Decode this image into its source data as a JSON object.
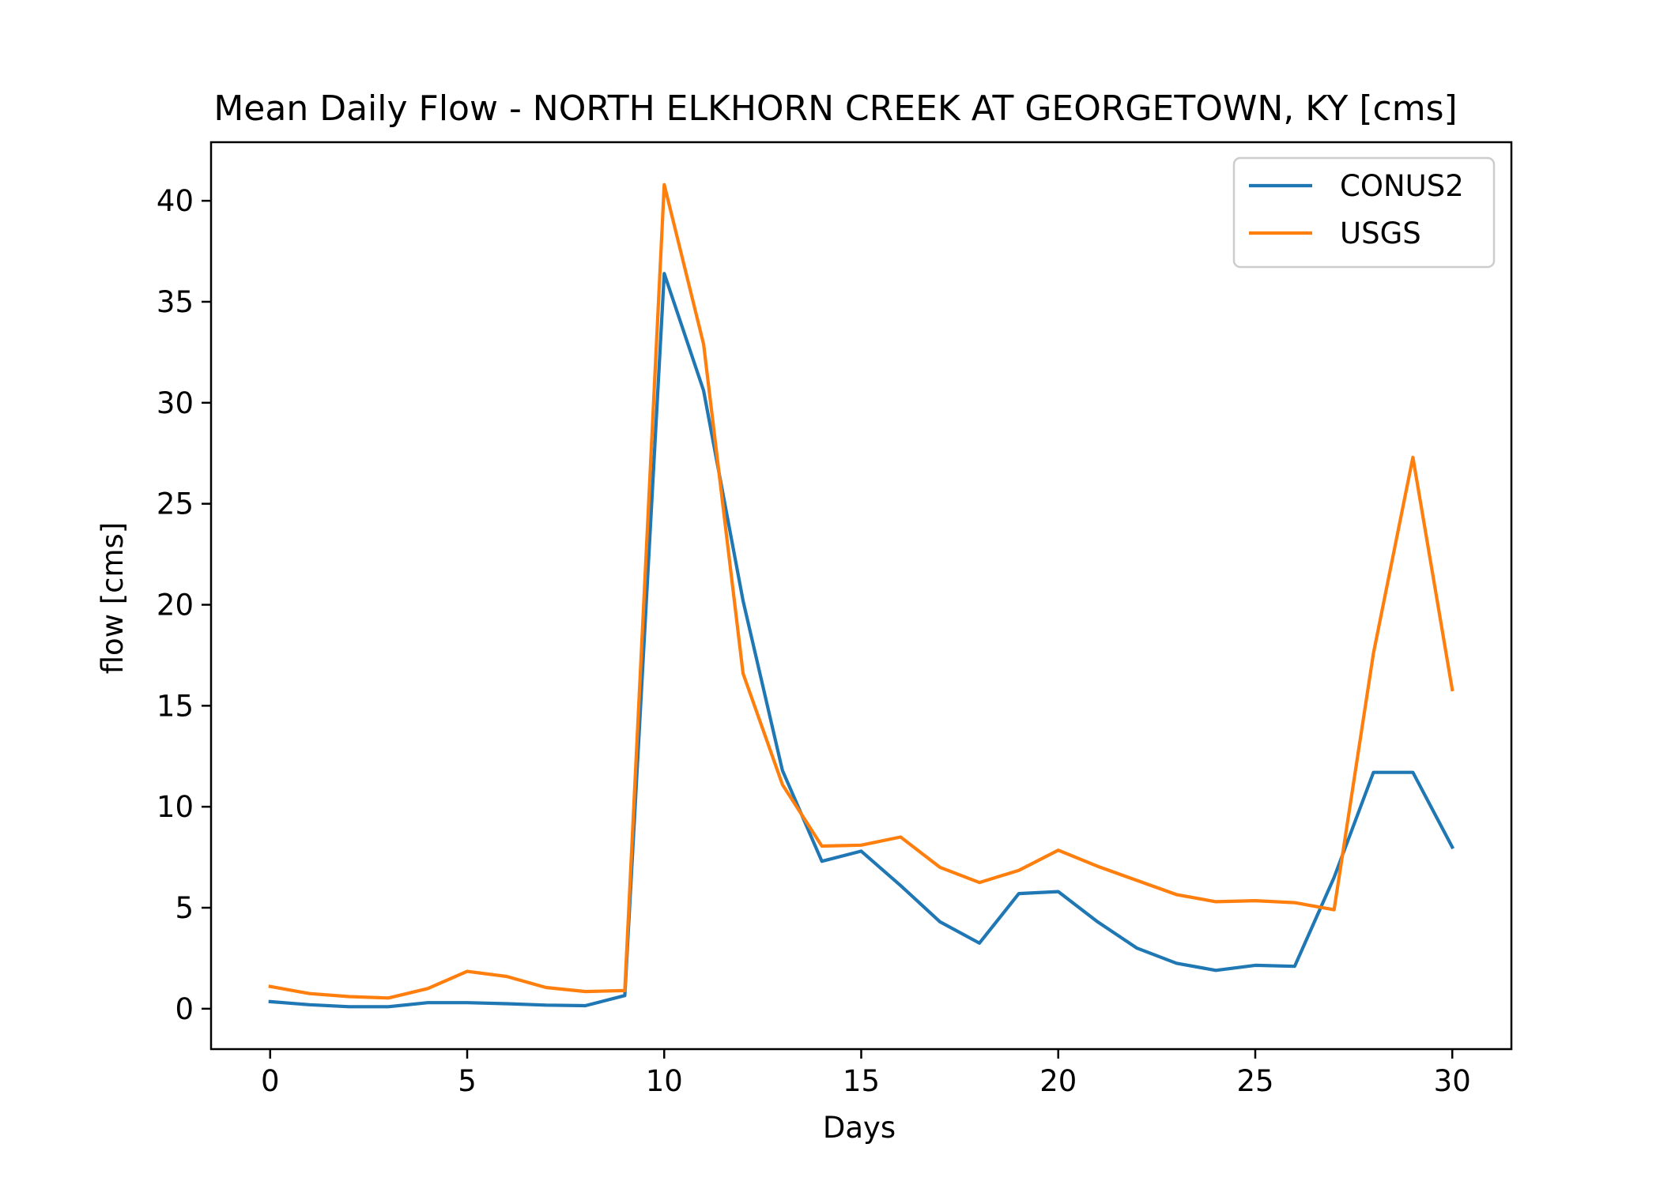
{
  "chart_data": {
    "type": "line",
    "title": "Mean Daily Flow - NORTH ELKHORN CREEK AT GEORGETOWN, KY [cms]",
    "xlabel": "Days",
    "ylabel": "flow [cms]",
    "xlim": [
      -1.5,
      31.5
    ],
    "ylim": [
      -2.0,
      42.9
    ],
    "xticks": [
      0,
      5,
      10,
      15,
      20,
      25,
      30
    ],
    "yticks": [
      0,
      5,
      10,
      15,
      20,
      25,
      30,
      35,
      40
    ],
    "xtick_labels": [
      "0",
      "5",
      "10",
      "15",
      "20",
      "25",
      "30"
    ],
    "ytick_labels": [
      "0",
      "5",
      "10",
      "15",
      "20",
      "25",
      "30",
      "35",
      "40"
    ],
    "grid": false,
    "legend_position": "top-right",
    "x": [
      0,
      1,
      2,
      3,
      4,
      5,
      6,
      7,
      8,
      9,
      10,
      11,
      12,
      13,
      14,
      15,
      16,
      17,
      18,
      19,
      20,
      21,
      22,
      23,
      24,
      25,
      26,
      27,
      28,
      29,
      30
    ],
    "series": [
      {
        "name": "CONUS2",
        "color": "#1f77b4",
        "values": [
          0.35,
          0.2,
          0.1,
          0.1,
          0.3,
          0.3,
          0.25,
          0.18,
          0.15,
          0.65,
          36.4,
          30.6,
          20.2,
          11.8,
          7.3,
          7.8,
          6.1,
          4.3,
          3.25,
          5.7,
          5.8,
          4.3,
          3.0,
          2.25,
          1.9,
          2.15,
          2.1,
          6.5,
          11.7,
          11.7,
          8.0
        ]
      },
      {
        "name": "USGS",
        "color": "#ff7f0e",
        "values": [
          1.1,
          0.75,
          0.6,
          0.53,
          1.0,
          1.85,
          1.6,
          1.05,
          0.85,
          0.9,
          40.8,
          32.9,
          16.6,
          11.1,
          8.05,
          8.1,
          8.5,
          7.0,
          6.25,
          6.85,
          7.85,
          7.05,
          6.35,
          5.65,
          5.3,
          5.35,
          5.25,
          4.9,
          17.6,
          27.3,
          15.8
        ]
      }
    ]
  }
}
